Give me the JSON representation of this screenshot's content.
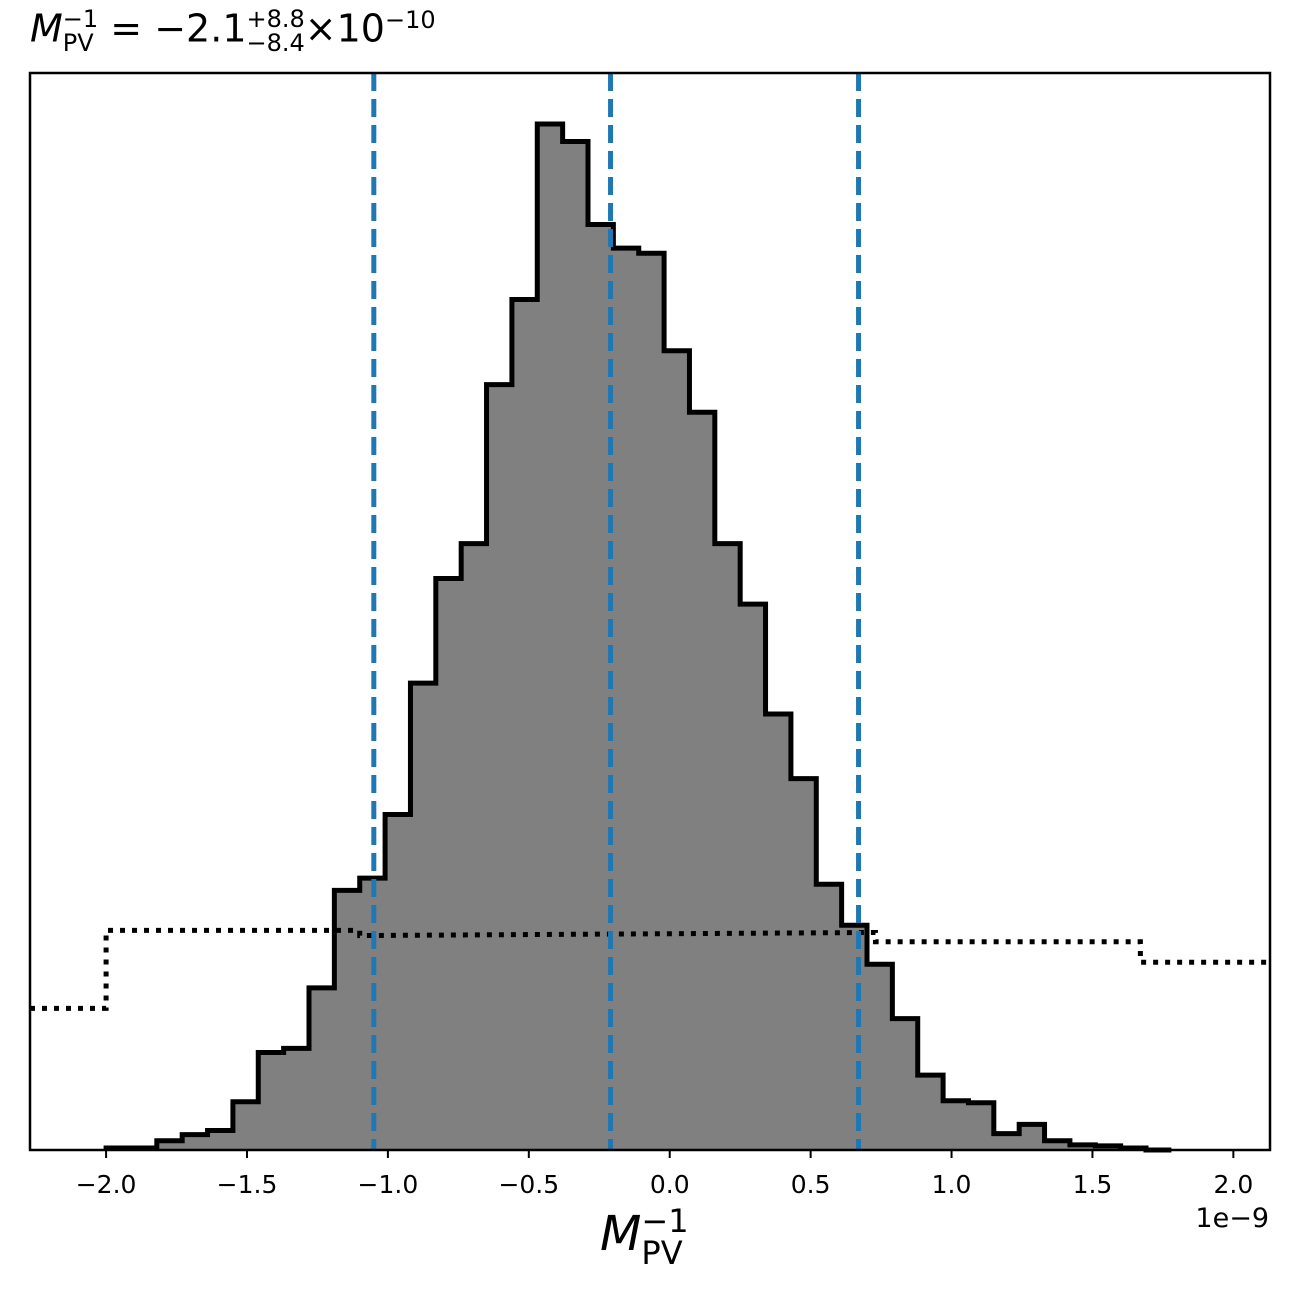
{
  "title": {
    "symbol": "M",
    "symbol_sup": "−1",
    "symbol_sub": "PV",
    "equals": "=",
    "value": "−2.1",
    "err_plus": "+8.8",
    "err_minus": "−8.4",
    "times": "×",
    "base": "10",
    "exponent": "−10"
  },
  "xlabel": {
    "symbol": "M",
    "sup": "−1",
    "sub": "PV"
  },
  "offset_text": "1e−9",
  "chart_data": {
    "type": "histogram",
    "x_scale_factor": 1e-09,
    "xlim": [
      -2.27,
      2.13
    ],
    "ylim": [
      0,
      1.0
    ],
    "x_ticks": [
      {
        "value": -2.0,
        "label": "−2.0"
      },
      {
        "value": -1.5,
        "label": "−1.5"
      },
      {
        "value": -1.0,
        "label": "−1.0"
      },
      {
        "value": -0.5,
        "label": "−0.5"
      },
      {
        "value": 0.0,
        "label": "0.0"
      },
      {
        "value": 0.5,
        "label": "0.5"
      },
      {
        "value": 1.0,
        "label": "1.0"
      },
      {
        "value": 1.5,
        "label": "1.5"
      },
      {
        "value": 2.0,
        "label": "2.0"
      }
    ],
    "y_ticks_shown": false,
    "grid": false,
    "posterior_histogram": {
      "fill_color": "#808080",
      "edge_color": "#000000",
      "bin_edges": [
        -2.0,
        -1.91,
        -1.82,
        -1.73,
        -1.64,
        -1.55,
        -1.46,
        -1.37,
        -1.28,
        -1.19,
        -1.1,
        -1.01,
        -0.92,
        -0.83,
        -0.74,
        -0.65,
        -0.56,
        -0.47,
        -0.38,
        -0.29,
        -0.2,
        -0.11,
        -0.02,
        0.07,
        0.16,
        0.25,
        0.34,
        0.43,
        0.52,
        0.61,
        0.7,
        0.79,
        0.88,
        0.97,
        1.06,
        1.15,
        1.24,
        1.33,
        1.42,
        1.51,
        1.6,
        1.69,
        1.78
      ],
      "values": [
        0.002,
        0.002,
        0.009,
        0.015,
        0.019,
        0.047,
        0.095,
        0.099,
        0.158,
        0.253,
        0.265,
        0.327,
        0.455,
        0.557,
        0.591,
        0.746,
        0.829,
        1.0,
        0.983,
        0.902,
        0.879,
        0.874,
        0.779,
        0.719,
        0.591,
        0.532,
        0.425,
        0.362,
        0.259,
        0.219,
        0.181,
        0.128,
        0.073,
        0.048,
        0.046,
        0.016,
        0.025,
        0.009,
        0.005,
        0.004,
        0.002,
        0.0
      ]
    },
    "prior_histogram": {
      "line_style": "dotted",
      "color": "#000000",
      "bin_edges": [
        -2.27,
        -2.0,
        1.7,
        2.13
      ],
      "values": [
        0.138,
        0.214,
        0.183
      ],
      "step_points": [
        {
          "x": -2.27,
          "y": 0.138
        },
        {
          "x": -2.0,
          "y": 0.138
        },
        {
          "x": -2.0,
          "y": 0.214
        },
        {
          "x": -1.1,
          "y": 0.214
        },
        {
          "x": -1.1,
          "y": 0.209
        },
        {
          "x": 0.73,
          "y": 0.212
        },
        {
          "x": 0.73,
          "y": 0.203
        },
        {
          "x": 1.67,
          "y": 0.203
        },
        {
          "x": 1.67,
          "y": 0.183
        },
        {
          "x": 2.13,
          "y": 0.183
        }
      ]
    },
    "quantile_lines": {
      "color": "#1f77b4",
      "line_style": "dashed",
      "values": [
        -1.05,
        -0.21,
        0.67
      ]
    }
  }
}
